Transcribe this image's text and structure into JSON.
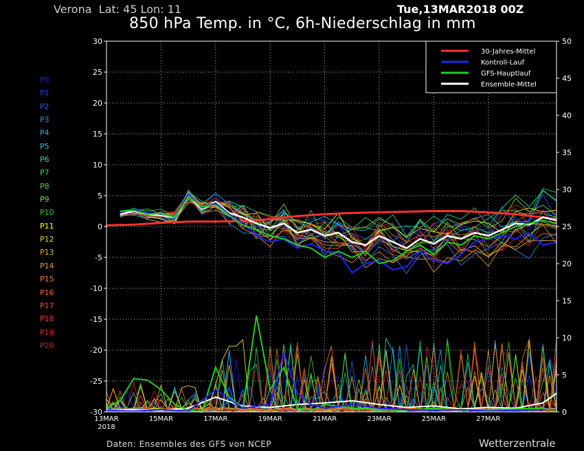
{
  "header": {
    "location": "Verona  Lat: 45 Lon: 11",
    "date": "Tue,13MAR2018 00Z",
    "title": "850 hPa Temp. in °C, 6h-Niederschlag in mm"
  },
  "footer": {
    "source": "Daten: Ensembles des GFS von NCEP",
    "brand": "Wetterzentrale"
  },
  "members": [
    {
      "label": "P0",
      "color": "#1a1aff"
    },
    {
      "label": "P1",
      "color": "#1e3cff"
    },
    {
      "label": "P2",
      "color": "#2060ff"
    },
    {
      "label": "P3",
      "color": "#2090ff"
    },
    {
      "label": "P4",
      "color": "#20b0ff"
    },
    {
      "label": "P5",
      "color": "#20d0e0"
    },
    {
      "label": "P6",
      "color": "#20e0a0"
    },
    {
      "label": "P7",
      "color": "#20e060"
    },
    {
      "label": "P8",
      "color": "#40e020"
    },
    {
      "label": "P9",
      "color": "#80e020"
    },
    {
      "label": "P10",
      "color": "#30d030"
    },
    {
      "label": "P11",
      "color": "#ffff30"
    },
    {
      "label": "P12",
      "color": "#f0d030"
    },
    {
      "label": "P13",
      "color": "#f0b030"
    },
    {
      "label": "P14",
      "color": "#f09a30"
    },
    {
      "label": "P15",
      "color": "#f08030"
    },
    {
      "label": "P16",
      "color": "#f06a30"
    },
    {
      "label": "P17",
      "color": "#e85030"
    },
    {
      "label": "P18",
      "color": "#e04030"
    },
    {
      "label": "P19",
      "color": "#d83020"
    },
    {
      "label": "P20",
      "color": "#d02020"
    }
  ],
  "chart_data": {
    "type": "line",
    "x_ticks": [
      "13MAR",
      "15MAR",
      "17MAR",
      "19MAR",
      "21MAR",
      "23MAR",
      "25MAR",
      "27MAR"
    ],
    "x_tick_year": "2018",
    "x_range_days": [
      0,
      16.5
    ],
    "y_left": {
      "range": [
        -30,
        30
      ],
      "ticks": [
        -30,
        -25,
        -20,
        -15,
        -10,
        -5,
        0,
        5,
        10,
        15,
        20,
        25,
        30
      ],
      "unit": "°C"
    },
    "y_right": {
      "range": [
        0,
        50
      ],
      "ticks": [
        0,
        5,
        10,
        15,
        20,
        25,
        30,
        35,
        40,
        45,
        50
      ],
      "unit": "mm"
    },
    "grid": true,
    "legend_position": "top-right",
    "legend": [
      {
        "name": "30-Jahres-Mittel",
        "color": "#ff3030"
      },
      {
        "name": "Kontroll-Lauf",
        "color": "#2020ff"
      },
      {
        "name": "GFS-Hauptlauf",
        "color": "#20d020"
      },
      {
        "name": "Ensemble-Mittel",
        "color": "#ffffff"
      }
    ],
    "series_temperature": [
      {
        "name": "30-Jahres-Mittel",
        "x": [
          0,
          1,
          2,
          3,
          4,
          5,
          6,
          7,
          8,
          9,
          10,
          11,
          12,
          13,
          14,
          15,
          16.5
        ],
        "values": [
          0.2,
          0.3,
          0.6,
          0.8,
          0.8,
          0.9,
          1.2,
          1.7,
          2.0,
          2.2,
          2.3,
          2.4,
          2.5,
          2.5,
          2.3,
          2.0,
          1.2
        ]
      },
      {
        "name": "Ensemble-Mittel",
        "x": [
          0.5,
          1,
          1.5,
          2,
          2.5,
          3,
          3.5,
          4,
          4.5,
          5,
          5.5,
          6,
          6.5,
          7,
          7.5,
          8,
          8.5,
          9,
          9.5,
          10,
          10.5,
          11,
          11.5,
          12,
          12.5,
          13,
          13.5,
          14,
          14.5,
          15,
          15.5,
          16,
          16.5
        ],
        "values": [
          2.0,
          2.5,
          2.0,
          1.8,
          1.5,
          5.0,
          2.8,
          4.0,
          2.2,
          1.5,
          0.5,
          -0.2,
          0.5,
          -1.0,
          -0.5,
          -1.5,
          -1.0,
          -2.5,
          -3.0,
          -1.5,
          -2.5,
          -3.5,
          -2.0,
          -2.8,
          -1.5,
          -2.0,
          -1.0,
          -1.5,
          -0.5,
          0.5,
          0.3,
          1.5,
          1.0
        ]
      },
      {
        "name": "Kontroll-Lauf",
        "x": [
          0.5,
          1,
          1.5,
          2,
          2.5,
          3,
          3.5,
          4,
          4.5,
          5,
          5.5,
          6,
          6.5,
          7,
          7.5,
          8,
          8.5,
          9,
          9.5,
          10,
          10.5,
          11,
          11.5,
          12,
          12.5,
          13,
          13.5,
          14,
          14.5,
          15,
          15.5,
          16,
          16.5
        ],
        "values": [
          2.2,
          2.8,
          2.2,
          2.0,
          1.6,
          5.2,
          3.0,
          3.8,
          2.0,
          0.5,
          -1.5,
          -2.5,
          -2.0,
          -3.5,
          -2.8,
          -4.0,
          -4.2,
          -7.5,
          -6.0,
          -5.5,
          -7.0,
          -6.5,
          -4.0,
          -5.5,
          -6.0,
          -4.5,
          -2.5,
          -2.0,
          -1.5,
          -2.0,
          -1.0,
          -3.0,
          -2.5
        ]
      },
      {
        "name": "GFS-Hauptlauf",
        "x": [
          0.5,
          1,
          1.5,
          2,
          2.5,
          3,
          3.5,
          4,
          4.5,
          5,
          5.5,
          6,
          6.5,
          7,
          7.5,
          8,
          8.5,
          9,
          9.5,
          10,
          10.5,
          11,
          11.5,
          12,
          12.5,
          13,
          13.5,
          14,
          14.5,
          15,
          15.5,
          16,
          16.5
        ],
        "values": [
          2.5,
          2.6,
          2.0,
          2.1,
          1.5,
          4.8,
          3.2,
          3.5,
          1.8,
          0.2,
          -0.5,
          -1.5,
          -2.0,
          -3.0,
          -3.5,
          -5.0,
          -4.0,
          -5.0,
          -4.0,
          -6.0,
          -5.5,
          -4.0,
          -3.0,
          -4.5,
          -2.5,
          -3.0,
          -1.5,
          -2.0,
          -1.0,
          0.0,
          0.5,
          1.0,
          0.5
        ]
      }
    ],
    "series_precipitation": [
      {
        "name": "Ensemble-Mittel",
        "x": [
          0,
          1,
          2,
          3,
          4,
          5,
          6,
          7,
          8,
          9,
          10,
          11,
          12,
          13,
          14,
          15,
          16,
          16.5
        ],
        "values": [
          0.2,
          0.3,
          0.2,
          0.5,
          2.0,
          0.8,
          0.6,
          1.0,
          1.2,
          1.5,
          1.0,
          0.6,
          0.8,
          0.4,
          0.6,
          0.5,
          1.2,
          2.5
        ]
      },
      {
        "name": "GFS-Hauptlauf",
        "x": [
          0,
          0.5,
          1,
          1.5,
          2,
          2.5,
          3,
          3.5,
          4,
          4.5,
          5,
          5.5,
          6,
          6.5,
          7,
          7.5,
          8,
          9,
          10,
          11,
          12,
          13,
          14,
          15,
          16
        ],
        "values": [
          0.5,
          1.5,
          4.5,
          4.3,
          3.0,
          1.0,
          0.2,
          0.0,
          6.0,
          2.0,
          0.5,
          13.0,
          3.0,
          6.0,
          0.5,
          0.2,
          1.0,
          0.5,
          0.3,
          0.2,
          0.5,
          0.2,
          0.3,
          0.4,
          0.5
        ]
      },
      {
        "name": "Kontroll-Lauf",
        "x": [
          0,
          1,
          2,
          3,
          4,
          5,
          6,
          6.5,
          7,
          7.5,
          8,
          9,
          10,
          11,
          12,
          13,
          14,
          15,
          16
        ],
        "values": [
          0.2,
          0.1,
          0.3,
          0.1,
          3.0,
          0.5,
          1.0,
          8.0,
          2.5,
          1.0,
          0.5,
          1.0,
          0.5,
          0.3,
          0.2,
          0.3,
          0.1,
          0.2,
          0.3
        ]
      }
    ]
  }
}
